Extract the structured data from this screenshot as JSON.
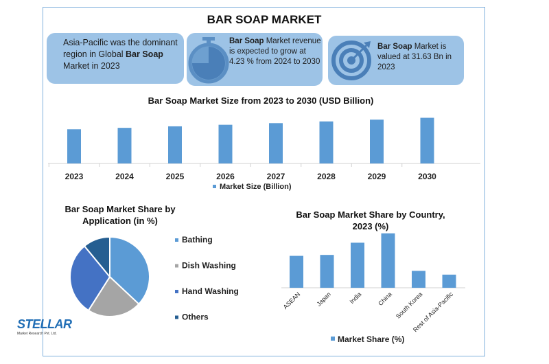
{
  "title": "BAR SOAP MARKET",
  "info_boxes": [
    {
      "pre": "Asia-Pacific was the dominant region in Global ",
      "bold": "Bar Soap",
      "post": " Market in 2023",
      "icon": "none"
    },
    {
      "pre": "",
      "bold": "Bar Soap",
      "post": " Market revenue is expected to grow at 4.23 % from 2024 to 2030",
      "icon": "stopwatch-icon"
    },
    {
      "pre": "",
      "bold": "Bar Soap",
      "post": " Market is valued at 31.63 Bn in 2023",
      "icon": "target-icon"
    }
  ],
  "logo": {
    "name": "STELLAR",
    "sub": "Market Research Pvt. Ltd."
  },
  "colors": {
    "bar": "#5b9bd5",
    "bathing": "#5b9bd5",
    "dish": "#a5a5a5",
    "hand": "#4472c4",
    "others": "#255e91",
    "box": "#9dc3e6"
  },
  "chart_data": [
    {
      "type": "bar",
      "title": "Bar Soap Market Size from 2023 to 2030 (USD Billion)",
      "categories": [
        "2023",
        "2024",
        "2025",
        "2026",
        "2027",
        "2028",
        "2029",
        "2030"
      ],
      "series": [
        {
          "name": "Market Size (Billion)",
          "values": [
            31.63,
            32.97,
            34.36,
            35.82,
            37.33,
            38.91,
            40.56,
            42.27
          ]
        }
      ],
      "ylim": [
        0,
        45
      ],
      "legend": "bottom"
    },
    {
      "type": "pie",
      "title": "Bar Soap Market Share by Application (in %)",
      "categories": [
        "Bathing",
        "Dish Washing",
        "Hand Washing",
        "Others"
      ],
      "values": [
        37,
        22,
        30,
        11
      ],
      "legend": "right"
    },
    {
      "type": "bar",
      "title": "Bar Soap Market Share by Country, 2023 (%)",
      "categories": [
        "ASEAN",
        "Japan",
        "India",
        "China",
        "South Korea",
        "Rest of Asia-Pacific"
      ],
      "series": [
        {
          "name": "Market Share (%)",
          "values": [
            17,
            17.5,
            24,
            29,
            9,
            7
          ]
        }
      ],
      "ylim": [
        0,
        30
      ],
      "legend": "bottom"
    }
  ]
}
